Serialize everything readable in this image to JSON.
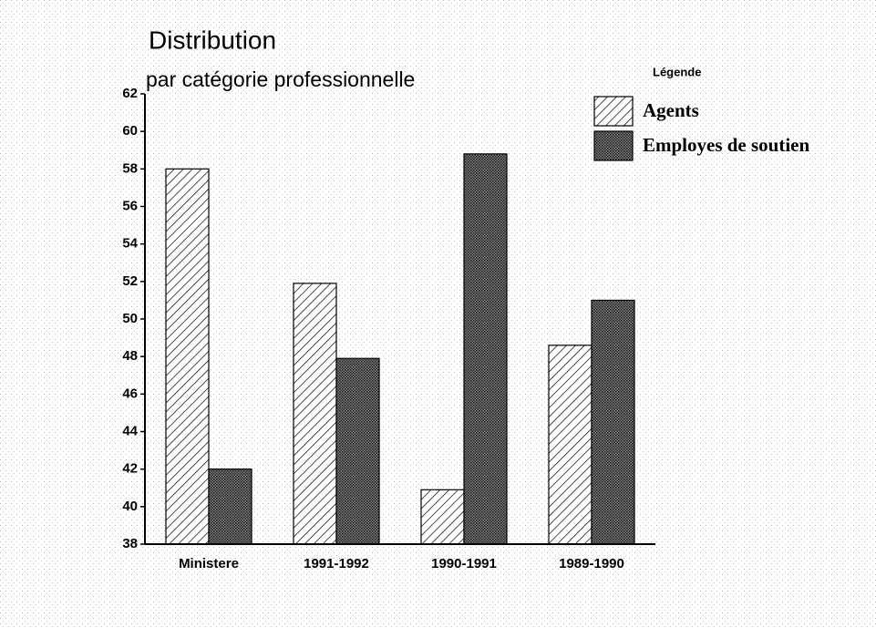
{
  "chart_data": {
    "type": "bar",
    "title": "Distribution",
    "subtitle": "par catégorie professionnelle",
    "legend_title": "Légende",
    "legend_position": "upper right",
    "categories": [
      "Ministere",
      "1991-1992",
      "1990-1991",
      "1989-1990"
    ],
    "series": [
      {
        "name": "Agents",
        "color": "#000000",
        "pattern": "hatch",
        "values": [
          58,
          51.9,
          40.9,
          48.6
        ]
      },
      {
        "name": "Employes de soutien",
        "color": "#000000",
        "pattern": "dots",
        "values": [
          42,
          47.9,
          58.8,
          51
        ]
      }
    ],
    "ylim": [
      38,
      62
    ],
    "yticks": [
      38,
      40,
      42,
      44,
      46,
      48,
      50,
      52,
      54,
      56,
      58,
      60,
      62
    ],
    "grid": false
  }
}
